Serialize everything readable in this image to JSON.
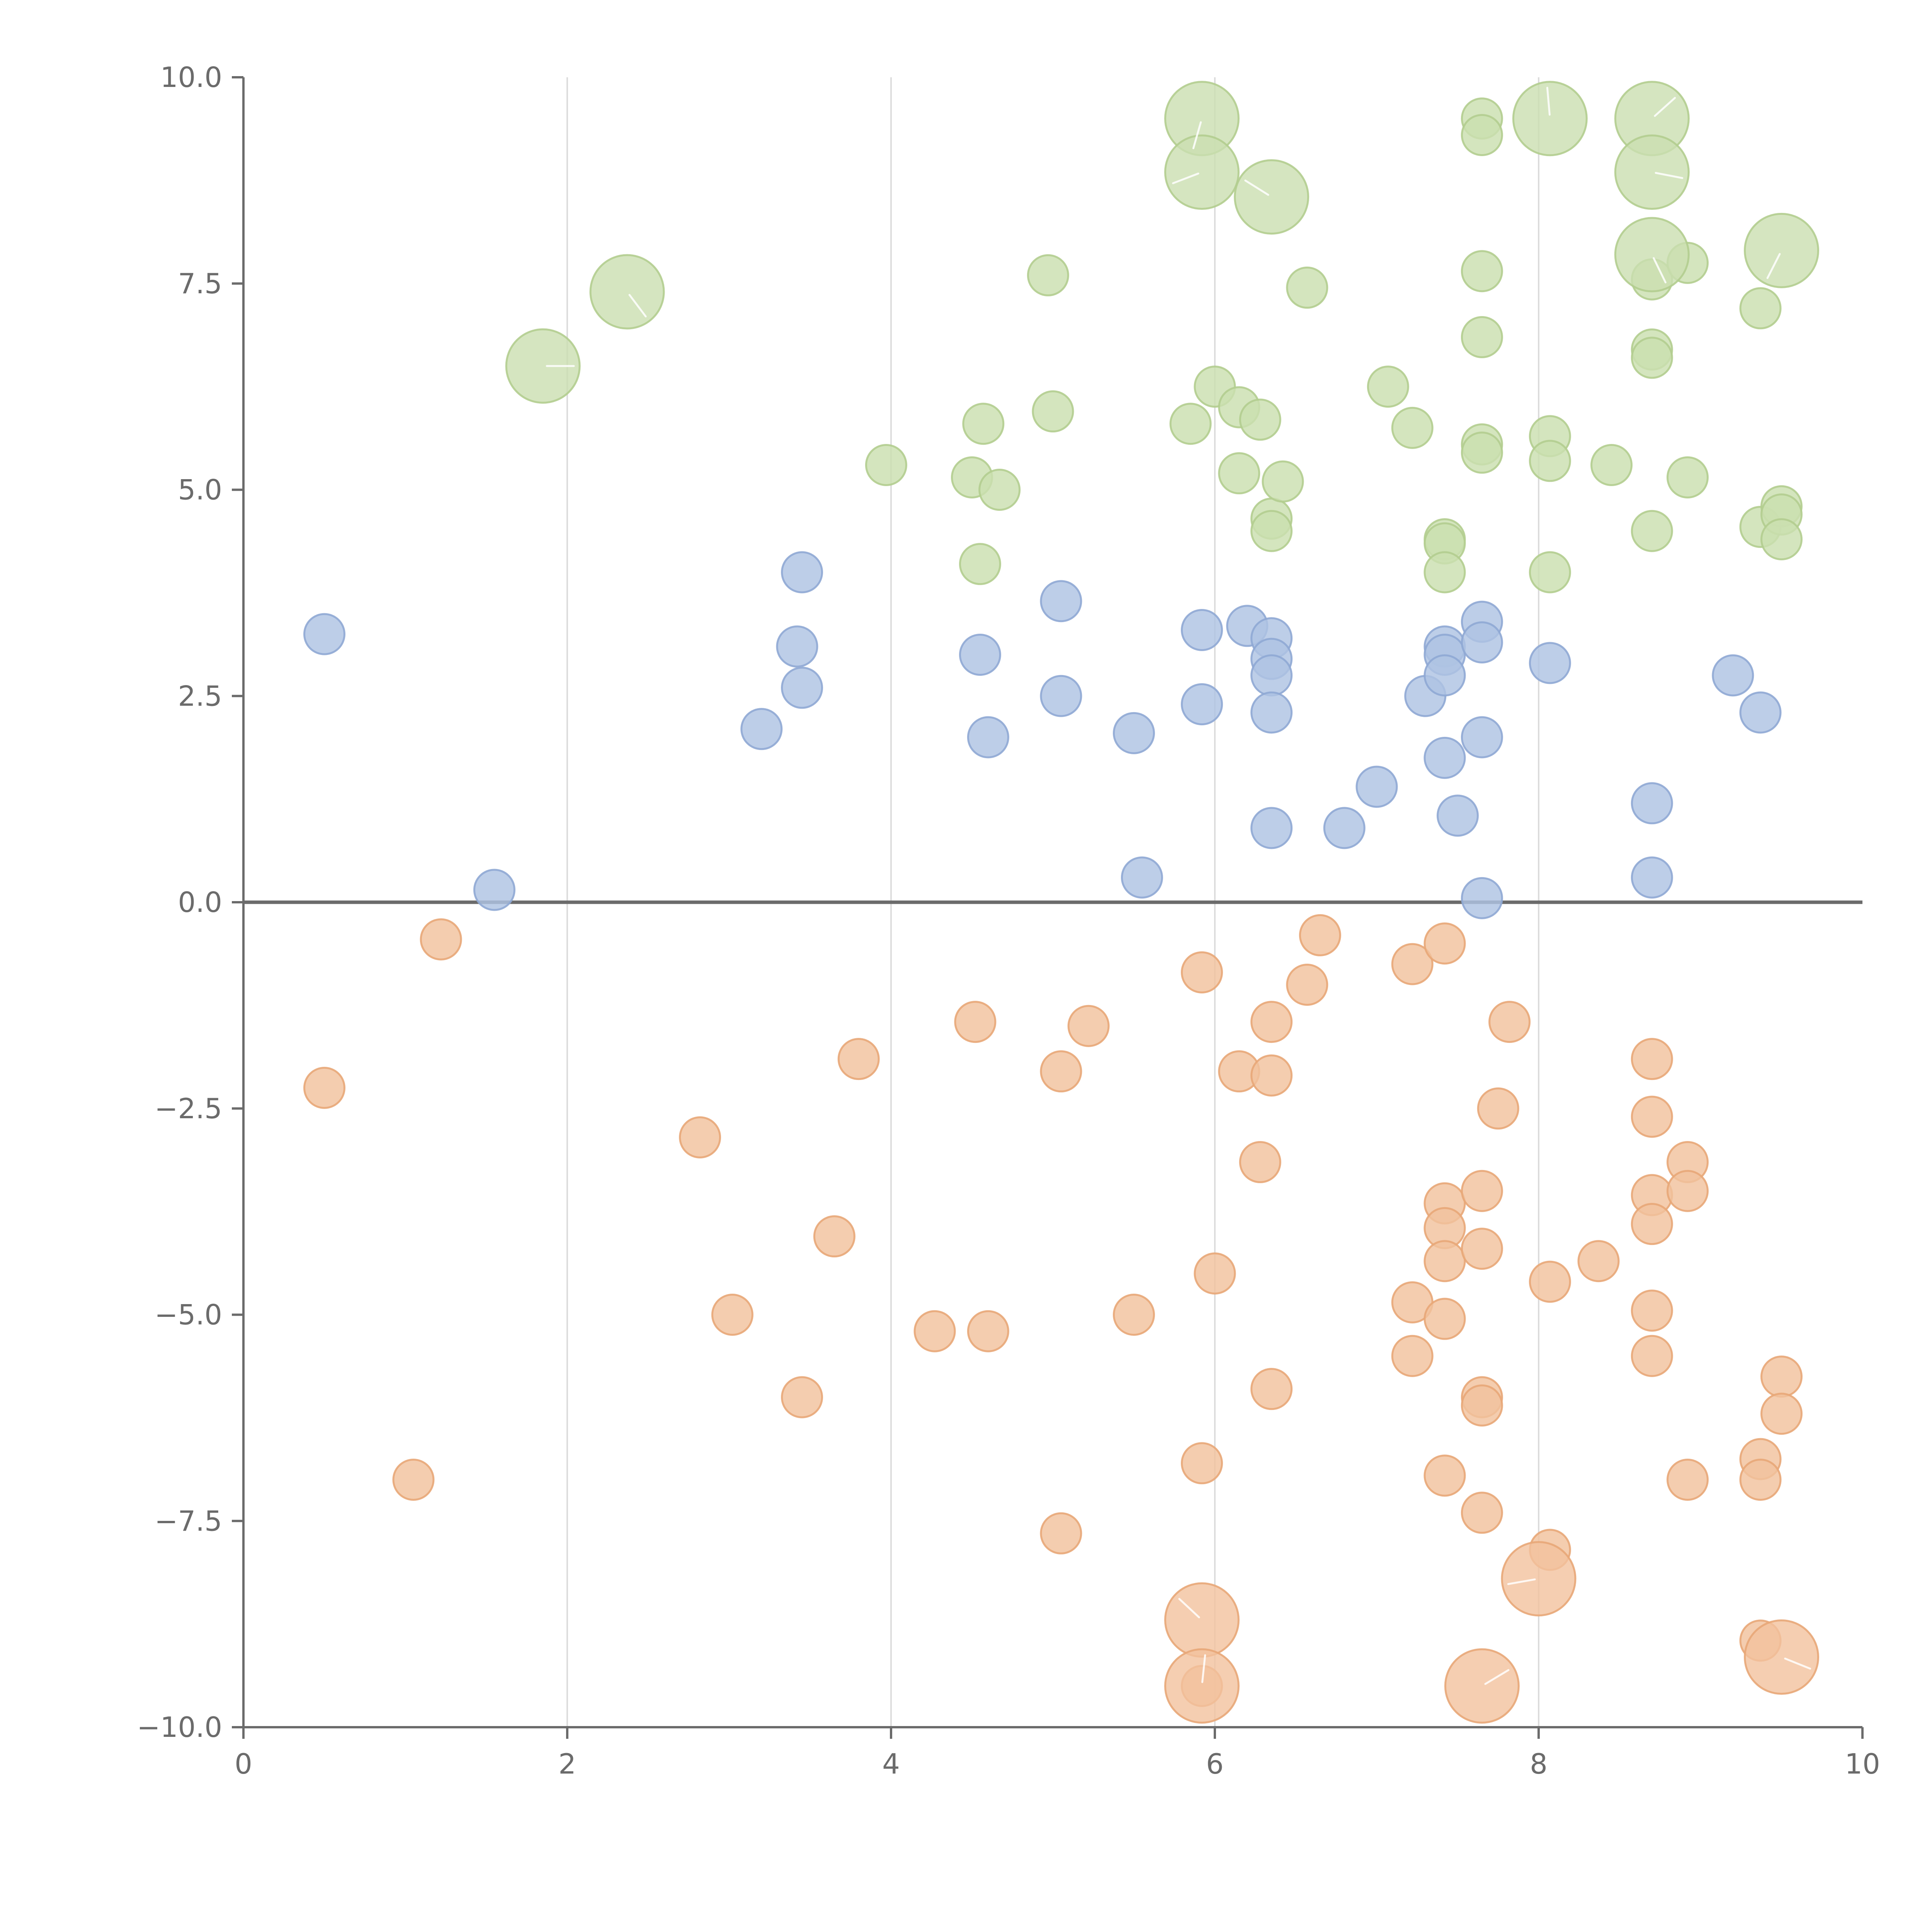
{
  "chart_data": {
    "type": "scatter",
    "title": "",
    "xlabel": "",
    "ylabel": "",
    "xlim": [
      0,
      10
    ],
    "ylim": [
      -10,
      10
    ],
    "x_ticks": [
      "0",
      "2",
      "4",
      "6",
      "8",
      "10"
    ],
    "y_ticks": [
      "10.0",
      "7.5",
      "5.0",
      "2.5",
      "0.0",
      "−2.5",
      "−5.0",
      "−7.5",
      "−10.0"
    ],
    "x_tick_values": [
      0,
      2,
      4,
      6,
      8,
      10
    ],
    "y_tick_values": [
      10,
      7.5,
      5,
      2.5,
      0,
      -2.5,
      -5,
      -7.5,
      -10
    ],
    "grid": {
      "vertical": true,
      "horizontal": false
    },
    "zero_line": true,
    "series": [
      {
        "color": "#aec3e3",
        "stroke": "#8fa9d4",
        "points": [
          [
            0.5,
            3.25
          ],
          [
            1.55,
            0.15
          ],
          [
            3.2,
            2.1
          ],
          [
            3.42,
            3.1
          ],
          [
            3.45,
            4.0
          ],
          [
            3.45,
            2.6
          ],
          [
            4.55,
            3.0
          ],
          [
            4.6,
            2.0
          ],
          [
            5.05,
            3.65
          ],
          [
            5.05,
            2.5
          ],
          [
            5.5,
            2.05
          ],
          [
            5.55,
            0.3
          ],
          [
            5.92,
            3.3
          ],
          [
            5.92,
            2.4
          ],
          [
            6.2,
            3.35
          ],
          [
            6.35,
            3.2
          ],
          [
            6.35,
            2.95
          ],
          [
            6.35,
            2.75
          ],
          [
            6.35,
            2.3
          ],
          [
            6.35,
            0.9
          ],
          [
            6.8,
            0.9
          ],
          [
            7.0,
            1.4
          ],
          [
            7.3,
            2.5
          ],
          [
            7.42,
            3.1
          ],
          [
            7.42,
            3.0
          ],
          [
            7.42,
            2.75
          ],
          [
            7.42,
            1.75
          ],
          [
            7.5,
            1.05
          ],
          [
            7.65,
            3.4
          ],
          [
            7.65,
            3.15
          ],
          [
            7.65,
            2.0
          ],
          [
            7.65,
            0.05
          ],
          [
            8.07,
            2.9
          ],
          [
            8.7,
            1.2
          ],
          [
            8.7,
            0.3
          ],
          [
            9.2,
            2.75
          ],
          [
            9.37,
            2.3
          ]
        ]
      },
      {
        "color": "#cbdfb0",
        "stroke": "#b2cd8f",
        "points": [
          [
            3.97,
            5.3
          ],
          [
            4.5,
            5.15
          ],
          [
            4.55,
            4.1
          ],
          [
            4.57,
            5.8
          ],
          [
            4.67,
            5.0
          ],
          [
            4.97,
            7.6
          ],
          [
            5.0,
            5.95
          ],
          [
            5.85,
            5.8
          ],
          [
            6.0,
            6.25
          ],
          [
            6.15,
            5.2
          ],
          [
            6.15,
            6.0
          ],
          [
            6.28,
            5.85
          ],
          [
            6.35,
            4.65
          ],
          [
            6.35,
            4.5
          ],
          [
            6.42,
            5.1
          ],
          [
            6.57,
            7.45
          ],
          [
            7.07,
            6.25
          ],
          [
            7.22,
            5.75
          ],
          [
            7.42,
            4.4
          ],
          [
            7.42,
            4.35
          ],
          [
            7.42,
            4.0
          ],
          [
            7.65,
            9.5
          ],
          [
            7.65,
            9.3
          ],
          [
            7.65,
            7.65
          ],
          [
            7.65,
            6.85
          ],
          [
            7.65,
            5.55
          ],
          [
            7.65,
            5.45
          ],
          [
            8.07,
            5.65
          ],
          [
            8.07,
            5.35
          ],
          [
            8.07,
            4.0
          ],
          [
            8.45,
            5.3
          ],
          [
            8.7,
            7.55
          ],
          [
            8.7,
            6.7
          ],
          [
            8.7,
            6.6
          ],
          [
            8.7,
            4.5
          ],
          [
            8.92,
            7.75
          ],
          [
            8.92,
            5.15
          ],
          [
            9.37,
            7.2
          ],
          [
            9.37,
            4.55
          ],
          [
            9.5,
            4.8
          ],
          [
            9.5,
            4.7
          ],
          [
            9.5,
            4.4
          ]
        ]
      },
      {
        "color": "#f2c29e",
        "stroke": "#e8a778",
        "points": [
          [
            0.5,
            -2.25
          ],
          [
            1.05,
            -7.0
          ],
          [
            1.22,
            -0.45
          ],
          [
            2.82,
            -2.85
          ],
          [
            3.02,
            -5.0
          ],
          [
            3.45,
            -6.0
          ],
          [
            3.65,
            -4.05
          ],
          [
            3.8,
            -1.9
          ],
          [
            4.27,
            -5.2
          ],
          [
            4.52,
            -1.45
          ],
          [
            4.6,
            -5.2
          ],
          [
            5.05,
            -2.05
          ],
          [
            5.05,
            -7.65
          ],
          [
            5.22,
            -1.5
          ],
          [
            5.5,
            -5.0
          ],
          [
            5.92,
            -0.85
          ],
          [
            5.92,
            -6.8
          ],
          [
            6.0,
            -4.5
          ],
          [
            6.15,
            -2.05
          ],
          [
            6.28,
            -3.15
          ],
          [
            6.35,
            -1.45
          ],
          [
            6.35,
            -2.1
          ],
          [
            6.35,
            -5.9
          ],
          [
            6.57,
            -1.0
          ],
          [
            6.65,
            -0.4
          ],
          [
            7.22,
            -0.75
          ],
          [
            7.22,
            -4.85
          ],
          [
            7.22,
            -5.5
          ],
          [
            7.42,
            -0.5
          ],
          [
            7.42,
            -3.65
          ],
          [
            7.42,
            -3.95
          ],
          [
            7.42,
            -4.35
          ],
          [
            7.42,
            -5.05
          ],
          [
            7.42,
            -6.95
          ],
          [
            7.65,
            -3.5
          ],
          [
            7.65,
            -4.2
          ],
          [
            7.65,
            -6.0
          ],
          [
            7.65,
            -6.1
          ],
          [
            7.65,
            -7.4
          ],
          [
            7.75,
            -2.5
          ],
          [
            7.82,
            -1.45
          ],
          [
            8.07,
            -4.6
          ],
          [
            8.07,
            -7.85
          ],
          [
            8.37,
            -4.35
          ],
          [
            8.7,
            -1.9
          ],
          [
            8.7,
            -2.6
          ],
          [
            8.7,
            -3.55
          ],
          [
            8.7,
            -3.9
          ],
          [
            8.7,
            -4.95
          ],
          [
            8.7,
            -5.5
          ],
          [
            8.92,
            -3.15
          ],
          [
            8.92,
            -3.5
          ],
          [
            8.92,
            -7.0
          ],
          [
            9.37,
            -6.75
          ],
          [
            9.37,
            -7.0
          ],
          [
            9.37,
            -8.95
          ],
          [
            9.5,
            -5.75
          ],
          [
            9.5,
            -6.2
          ],
          [
            5.92,
            -9.5
          ]
        ]
      }
    ],
    "large_bubbles": [
      {
        "x": 1.85,
        "y": 6.5,
        "series": 1
      },
      {
        "x": 2.37,
        "y": 7.4,
        "series": 1
      },
      {
        "x": 5.92,
        "y": 9.5,
        "series": 1
      },
      {
        "x": 5.92,
        "y": 8.85,
        "series": 1
      },
      {
        "x": 6.35,
        "y": 8.55,
        "series": 1
      },
      {
        "x": 8.07,
        "y": 9.5,
        "series": 1
      },
      {
        "x": 8.7,
        "y": 9.5,
        "series": 1
      },
      {
        "x": 8.7,
        "y": 8.85,
        "series": 1
      },
      {
        "x": 8.7,
        "y": 7.85,
        "series": 1
      },
      {
        "x": 9.5,
        "y": 7.9,
        "series": 1
      },
      {
        "x": 8.0,
        "y": -8.2,
        "series": 2
      },
      {
        "x": 5.92,
        "y": -8.7,
        "series": 2
      },
      {
        "x": 5.92,
        "y": -9.5,
        "series": 2
      },
      {
        "x": 7.65,
        "y": -9.5,
        "series": 2
      },
      {
        "x": 9.5,
        "y": -9.15,
        "series": 2
      }
    ]
  }
}
